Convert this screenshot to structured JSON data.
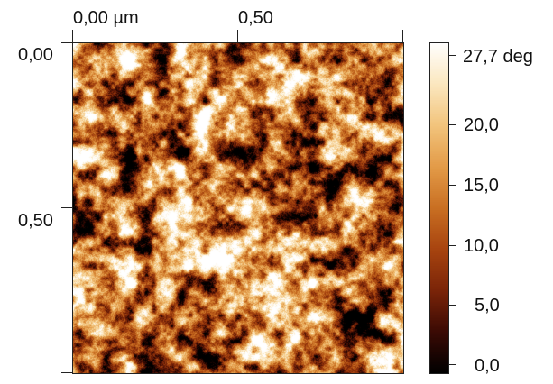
{
  "image": {
    "x_axis_ticks": [
      "0,00 µm",
      "0,50"
    ],
    "y_axis_ticks": [
      "0,00",
      "0,50"
    ],
    "colorbar_ticks": [
      "27,7 deg",
      "20,0",
      "15,0",
      "10,0",
      "5,0",
      "0,0"
    ],
    "colorbar": {
      "min": 0.0,
      "max": 27.7,
      "unit": "deg",
      "colormap": [
        "#000000",
        "#3a0a04",
        "#7a2408",
        "#a8440f",
        "#c96f22",
        "#e39b48",
        "#f2c47c",
        "#fbe7bf",
        "#ffffff"
      ]
    }
  }
}
